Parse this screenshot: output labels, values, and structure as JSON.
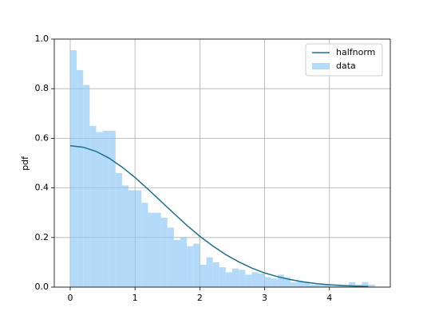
{
  "chart_data": {
    "type": "histogram",
    "ylabel": "pdf",
    "xlim": [
      -0.246,
      4.939
    ],
    "ylim": [
      0,
      1
    ],
    "xticks": [
      0,
      1,
      2,
      3,
      4
    ],
    "yticks": [
      {
        "value": 0,
        "label": "0.0"
      },
      0.2,
      0.4,
      0.6,
      0.8,
      {
        "value": 1,
        "label": "1.0"
      }
    ],
    "grid": true,
    "legend": "upper right",
    "series": [
      {
        "name": "halfnorm",
        "type": "line",
        "color": "#1f6f8b",
        "x": [
          0,
          0.2,
          0.4,
          0.6,
          0.8,
          1.0,
          1.2,
          1.4,
          1.6,
          1.8,
          2.0,
          2.2,
          2.4,
          2.6,
          2.8,
          3.0,
          3.2,
          3.4,
          3.6,
          3.8,
          4.0,
          4.2,
          4.4,
          4.6
        ],
        "values": [
          0.57,
          0.564,
          0.547,
          0.52,
          0.484,
          0.442,
          0.395,
          0.346,
          0.297,
          0.249,
          0.205,
          0.166,
          0.131,
          0.102,
          0.077,
          0.057,
          0.042,
          0.03,
          0.021,
          0.014,
          0.0096,
          0.0063,
          0.0041,
          0.0026
        ]
      },
      {
        "name": "data",
        "type": "histogram",
        "color": "#8cc6f7",
        "bins": [
          0,
          0.1,
          0.2,
          0.3,
          0.4,
          0.5,
          0.6,
          0.7,
          0.8,
          0.9,
          1.0,
          1.1,
          1.2,
          1.3,
          1.4,
          1.5,
          1.6,
          1.7,
          1.8,
          1.9,
          2.0,
          2.1,
          2.2,
          2.3,
          2.4,
          2.5,
          2.6,
          2.7,
          2.8,
          2.9,
          3.0,
          3.1,
          3.2,
          3.3,
          3.4,
          3.5,
          3.6,
          3.7,
          3.8,
          3.9,
          4.0,
          4.1,
          4.2,
          4.3,
          4.4,
          4.5,
          4.6,
          4.7
        ],
        "values": [
          0.955,
          0.875,
          0.815,
          0.65,
          0.625,
          0.63,
          0.63,
          0.46,
          0.41,
          0.39,
          0.39,
          0.34,
          0.3,
          0.3,
          0.28,
          0.24,
          0.19,
          0.2,
          0.165,
          0.175,
          0.09,
          0.12,
          0.1,
          0.08,
          0.06,
          0.075,
          0.07,
          0.05,
          0.06,
          0.055,
          0.04,
          0.035,
          0.05,
          0.04,
          0.02,
          0.025,
          0.02,
          0.01,
          0.01,
          0.01,
          0.005,
          0.005,
          0.005,
          0.02,
          0.01,
          0.02,
          0.01
        ]
      }
    ]
  }
}
